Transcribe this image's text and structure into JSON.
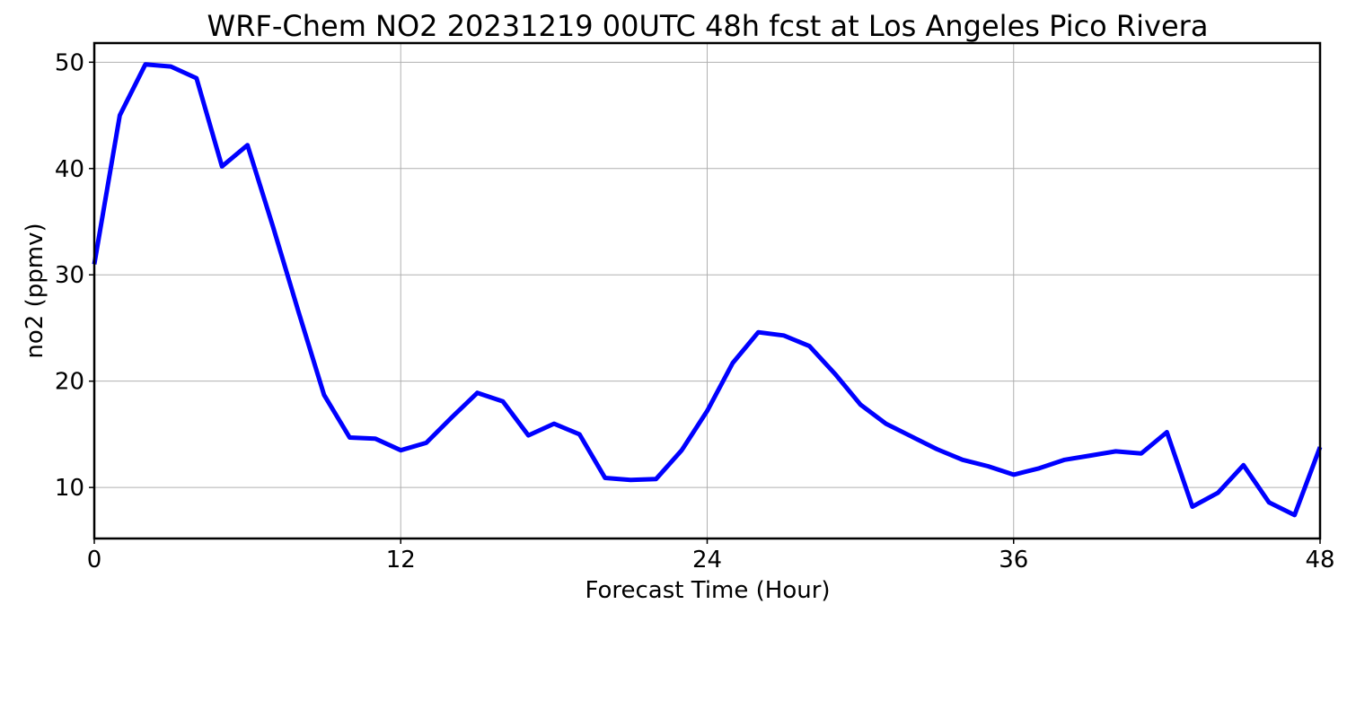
{
  "chart_data": {
    "type": "line",
    "title": "WRF-Chem NO2  20231219 00UTC 48h fcst at Los Angeles Pico Rivera",
    "xlabel": "Forecast Time (Hour)",
    "ylabel": "no2  (ppmv)",
    "xlim": [
      0,
      48
    ],
    "ylim": [
      5.2,
      51.8
    ],
    "xticks": [
      0,
      12,
      24,
      36,
      48
    ],
    "yticks": [
      10,
      20,
      30,
      40,
      50
    ],
    "grid": true,
    "series": [
      {
        "color": "#0000ff",
        "x": [
          0,
          1,
          2,
          3,
          4,
          5,
          6,
          7,
          8,
          9,
          10,
          11,
          12,
          13,
          14,
          15,
          16,
          17,
          18,
          19,
          20,
          21,
          22,
          23,
          24,
          25,
          26,
          27,
          28,
          29,
          30,
          31,
          32,
          33,
          34,
          35,
          36,
          37,
          38,
          39,
          40,
          41,
          42,
          43,
          44,
          45,
          46,
          47,
          48
        ],
        "values": [
          31.0,
          45.0,
          49.8,
          49.6,
          48.5,
          40.2,
          42.2,
          34.5,
          26.5,
          18.7,
          14.7,
          14.6,
          13.5,
          14.2,
          16.6,
          18.9,
          18.1,
          14.9,
          16.0,
          15.0,
          10.9,
          10.7,
          10.8,
          13.5,
          17.2,
          21.7,
          24.6,
          24.3,
          23.3,
          20.7,
          17.8,
          16.0,
          14.8,
          13.6,
          12.6,
          12.0,
          11.2,
          11.8,
          12.6,
          13.0,
          13.4,
          13.2,
          15.2,
          8.2,
          9.5,
          12.1,
          8.6,
          7.4,
          13.8
        ]
      }
    ]
  }
}
